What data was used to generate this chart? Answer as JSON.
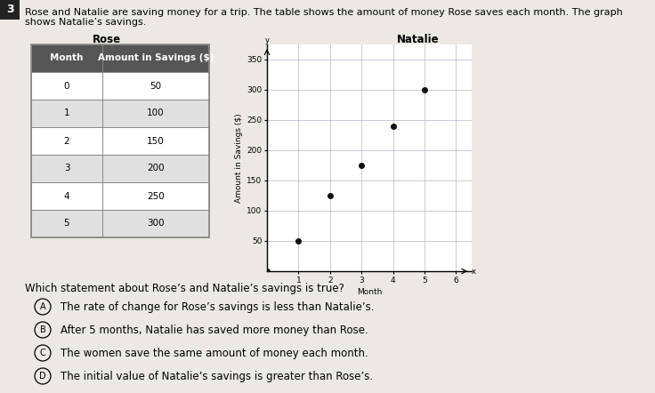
{
  "problem_number": "3",
  "header_line1": "Rose and Natalie are saving money for a trip. The table shows the amount of money Rose saves each month. The graph",
  "header_line2": "shows Natalie’s savings.",
  "rose_title": "Rose",
  "natalie_title": "Natalie",
  "table_headers": [
    "Month",
    "Amount in Savings ($)"
  ],
  "table_data": [
    [
      0,
      50
    ],
    [
      1,
      100
    ],
    [
      2,
      150
    ],
    [
      3,
      200
    ],
    [
      4,
      250
    ],
    [
      5,
      300
    ]
  ],
  "natalie_x": [
    0,
    1,
    2,
    3,
    4,
    5
  ],
  "natalie_y": [
    0,
    50,
    125,
    175,
    240,
    300
  ],
  "graph_xlabel": "Month",
  "graph_ylabel": "Amount in Savings ($)",
  "graph_xlim": [
    0,
    6.5
  ],
  "graph_ylim": [
    0,
    375
  ],
  "graph_yticks": [
    50,
    100,
    150,
    200,
    250,
    300,
    350
  ],
  "graph_xticks": [
    1,
    2,
    3,
    4,
    5,
    6
  ],
  "question_text": "Which statement about Rose’s and Natalie’s savings is true?",
  "options": [
    {
      "label": "A",
      "text": "The rate of change for Rose’s savings is less than Natalie’s."
    },
    {
      "label": "B",
      "text": "After 5 months, Natalie has saved more money than Rose."
    },
    {
      "label": "C",
      "text": "The women save the same amount of money each month."
    },
    {
      "label": "D",
      "text": "The initial value of Natalie’s savings is greater than Rose’s."
    }
  ],
  "bg_color": "#ece9e4",
  "table_header_bg": "#555555",
  "table_header_fg": "#ffffff",
  "table_row_bg_odd": "#ffffff",
  "table_row_bg_even": "#e0e0e0",
  "table_border_color": "#888888",
  "dot_color": "#111111",
  "grid_color": "#b0b8c8",
  "number_box_color": "#222222",
  "header_fontsize": 8.0,
  "axis_label_fontsize": 6.5,
  "tick_fontsize": 6.5,
  "table_fontsize": 7.5,
  "title_fontsize": 8.5,
  "question_fontsize": 8.5,
  "option_fontsize": 8.5
}
